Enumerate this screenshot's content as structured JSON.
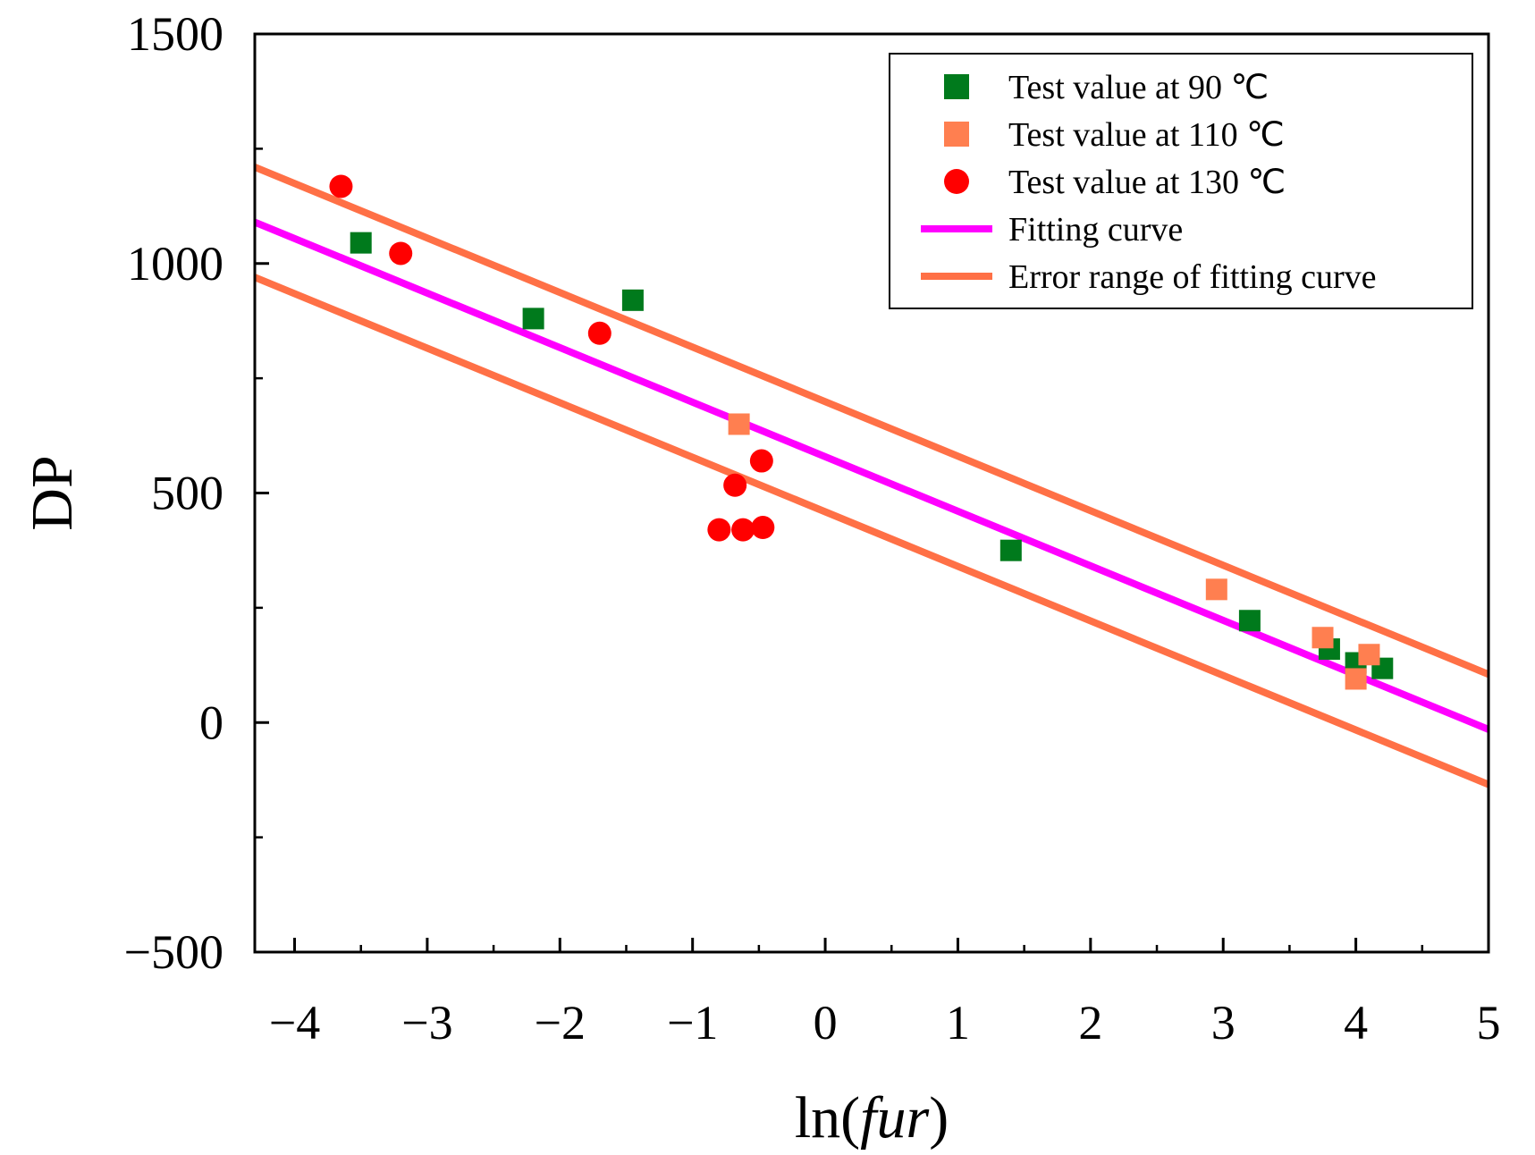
{
  "chart_data": {
    "type": "scatter",
    "title": "",
    "xlabel_prefix": "ln(",
    "xlabel_italic": "fur",
    "xlabel_suffix": ")",
    "ylabel": "DP",
    "xlim": [
      -4.3,
      5
    ],
    "ylim": [
      -500,
      1500
    ],
    "xticks": [
      -4,
      -3,
      -2,
      -1,
      0,
      1,
      2,
      3,
      4,
      5
    ],
    "xtick_labels": [
      "−4",
      "−3",
      "−2",
      "−1",
      "0",
      "1",
      "2",
      "3",
      "4",
      "5"
    ],
    "yticks": [
      -500,
      0,
      500,
      1000,
      1500
    ],
    "ytick_labels": [
      "−500",
      "0",
      "500",
      "1000",
      "1500"
    ],
    "x_minor_step": 0.5,
    "y_minor_step": 250,
    "legend_position": "top-right",
    "series": [
      {
        "name": "Test value at 90 ℃",
        "marker": "square",
        "color": "#007a1c",
        "points": [
          [
            -3.5,
            1045
          ],
          [
            -2.2,
            880
          ],
          [
            -1.45,
            920
          ],
          [
            1.4,
            375
          ],
          [
            3.2,
            222
          ],
          [
            3.8,
            160
          ],
          [
            4.0,
            130
          ],
          [
            4.2,
            118
          ]
        ]
      },
      {
        "name": "Test value at 110 ℃",
        "marker": "square",
        "color": "#ff7f50",
        "points": [
          [
            -0.65,
            650
          ],
          [
            2.95,
            290
          ],
          [
            3.75,
            185
          ],
          [
            4.0,
            95
          ],
          [
            4.1,
            148
          ]
        ]
      },
      {
        "name": "Test value at 130 ℃",
        "marker": "circle",
        "color": "#ff0000",
        "points": [
          [
            -3.65,
            1168
          ],
          [
            -3.2,
            1022
          ],
          [
            -1.7,
            848
          ],
          [
            -0.8,
            420
          ],
          [
            -0.68,
            517
          ],
          [
            -0.62,
            420
          ],
          [
            -0.48,
            570
          ],
          [
            -0.47,
            425
          ]
        ]
      }
    ],
    "lines": [
      {
        "name": "Fitting curve",
        "color": "#ff00ff",
        "points": [
          [
            -4.3,
            1090
          ],
          [
            5,
            -15
          ]
        ]
      },
      {
        "name": "Error range of fitting curve",
        "color": "#ff7046",
        "points": [
          [
            -4.3,
            1210
          ],
          [
            5,
            105
          ]
        ]
      },
      {
        "name": "",
        "color": "#ff7046",
        "points": [
          [
            -4.3,
            970
          ],
          [
            5,
            -135
          ]
        ]
      }
    ]
  }
}
